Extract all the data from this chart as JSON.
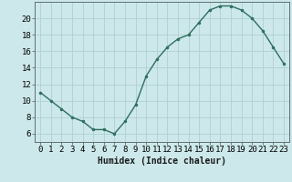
{
  "x": [
    0,
    1,
    2,
    3,
    4,
    5,
    6,
    7,
    8,
    9,
    10,
    11,
    12,
    13,
    14,
    15,
    16,
    17,
    18,
    19,
    20,
    21,
    22,
    23
  ],
  "y": [
    11,
    10,
    9,
    8,
    7.5,
    6.5,
    6.5,
    6.0,
    7.5,
    9.5,
    13,
    15,
    16.5,
    17.5,
    18,
    19.5,
    21,
    21.5,
    21.5,
    21,
    20,
    18.5,
    16.5,
    14.5
  ],
  "line_color": "#2d6e5e",
  "marker_color": "#2d6e5e",
  "bg_color": "#cce8ea",
  "grid_color": "#b0d0d4",
  "xlabel": "Humidex (Indice chaleur)",
  "xlim": [
    -0.5,
    23.5
  ],
  "ylim": [
    5.0,
    22.0
  ],
  "yticks": [
    6,
    8,
    10,
    12,
    14,
    16,
    18,
    20
  ],
  "xtick_labels": [
    "0",
    "1",
    "2",
    "3",
    "4",
    "5",
    "6",
    "7",
    "8",
    "9",
    "10",
    "11",
    "12",
    "13",
    "14",
    "15",
    "16",
    "17",
    "18",
    "19",
    "20",
    "21",
    "22",
    "23"
  ],
  "label_fontsize": 7,
  "tick_fontsize": 6.5
}
